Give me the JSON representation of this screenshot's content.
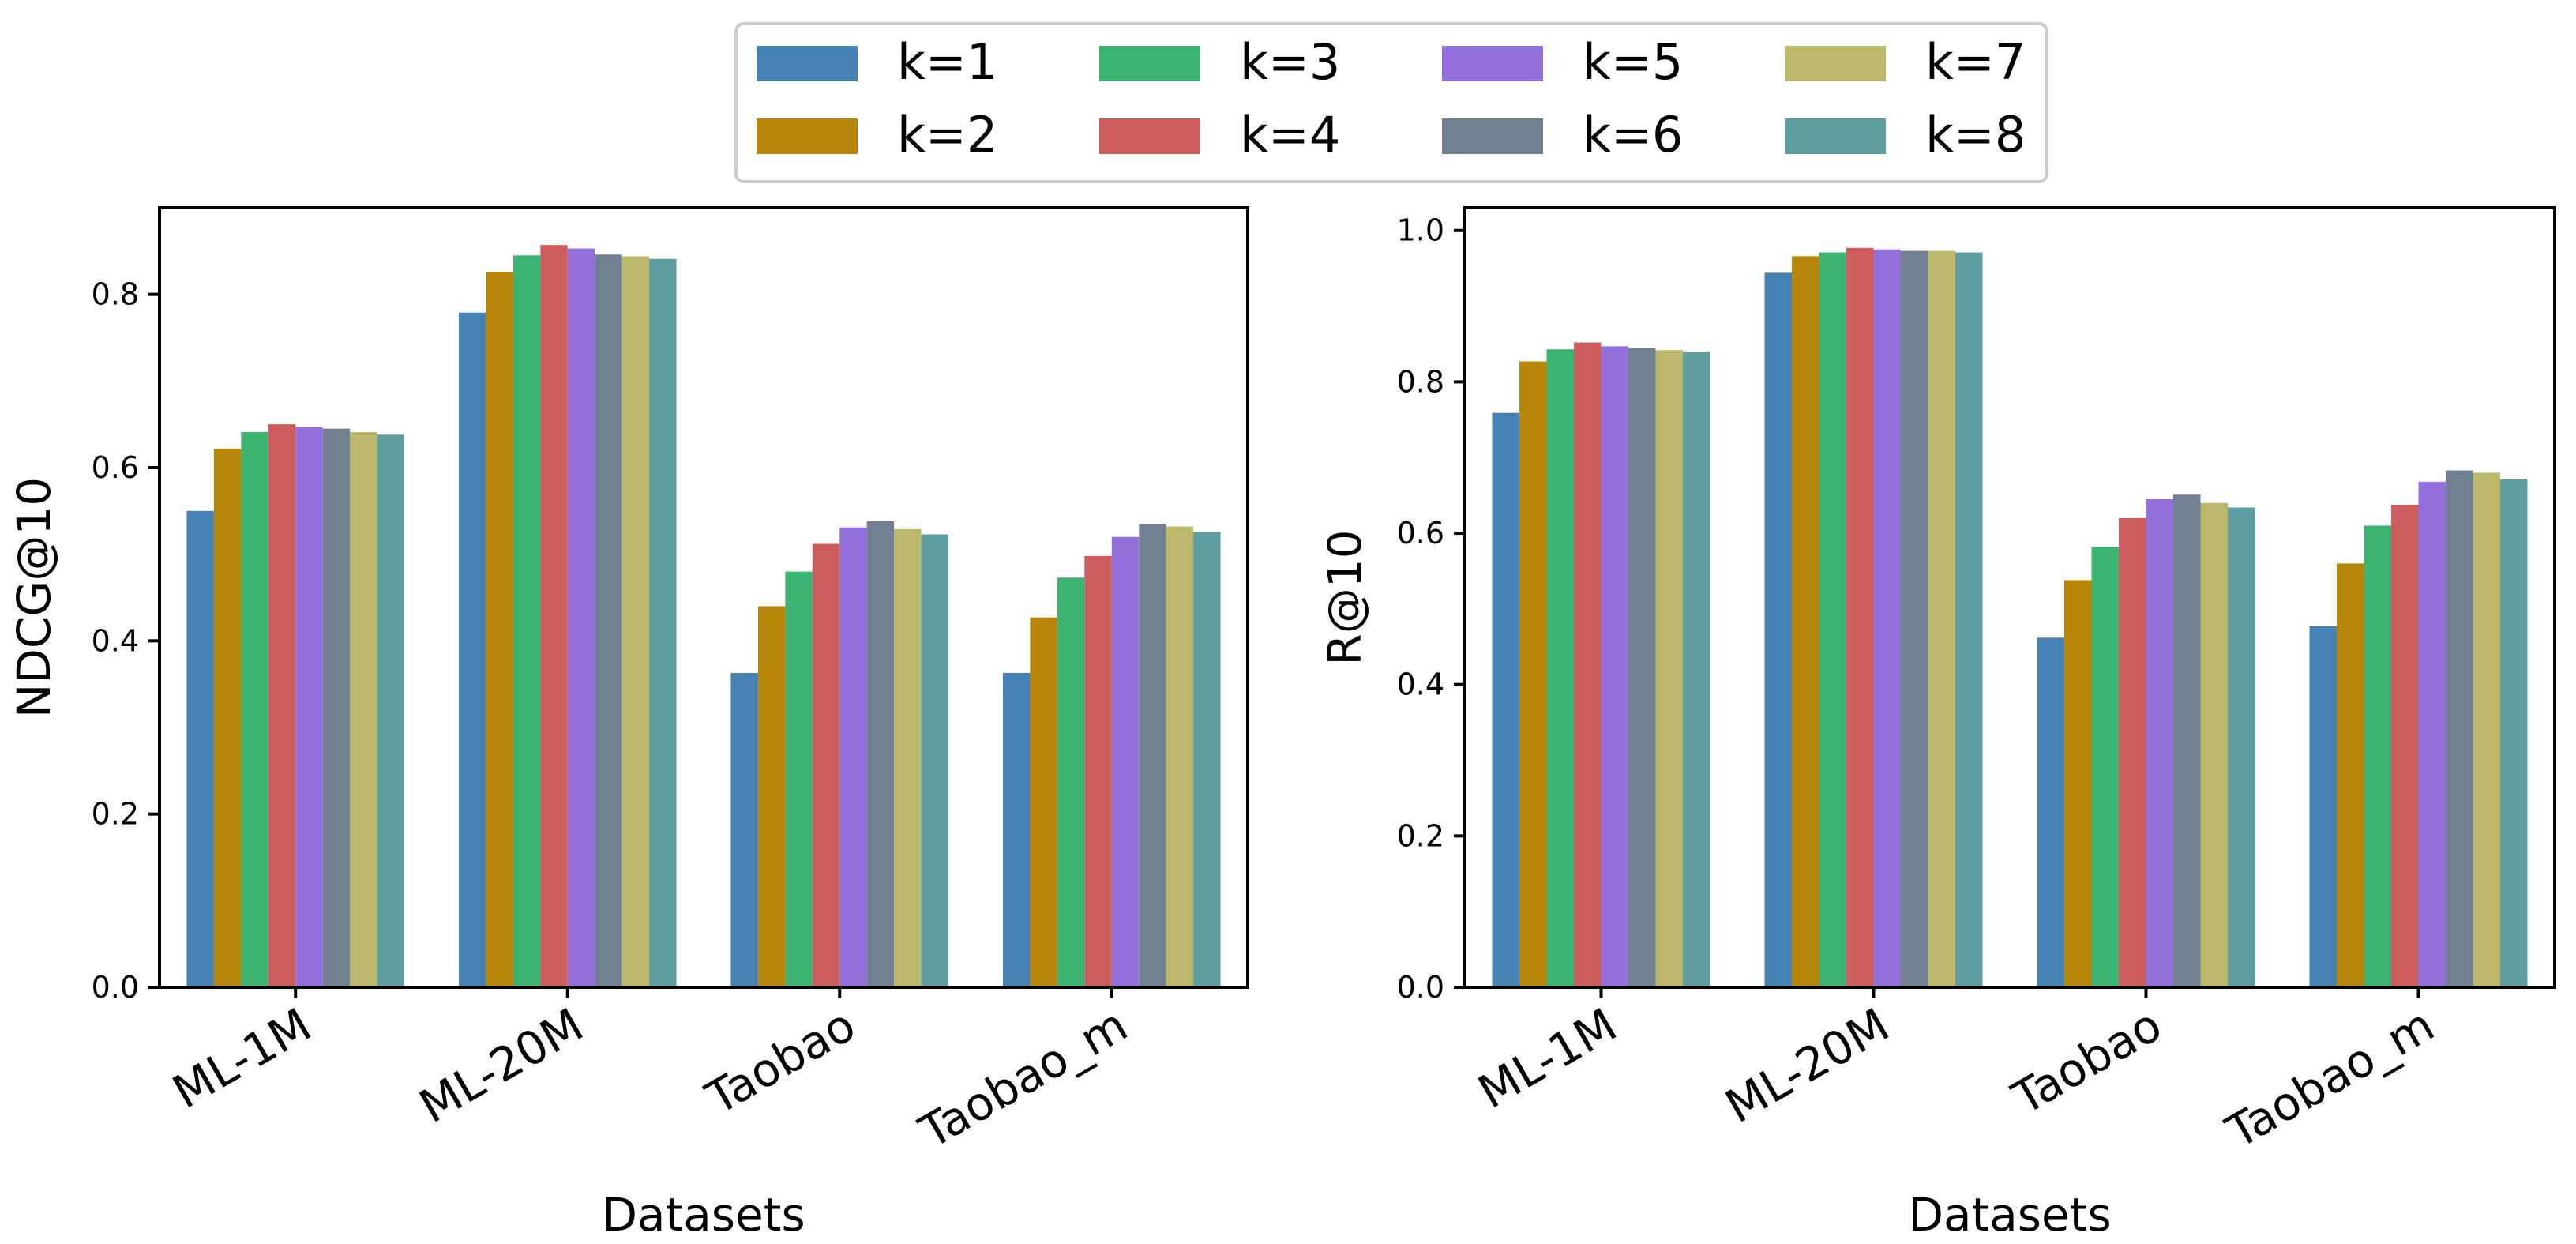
{
  "legend": {
    "items": [
      {
        "label": "k=1",
        "color": "#4682b4"
      },
      {
        "label": "k=2",
        "color": "#b8860b"
      },
      {
        "label": "k=3",
        "color": "#3cb371"
      },
      {
        "label": "k=4",
        "color": "#cd5c5c"
      },
      {
        "label": "k=5",
        "color": "#9370db"
      },
      {
        "label": "k=6",
        "color": "#708090"
      },
      {
        "label": "k=7",
        "color": "#bdb76b"
      },
      {
        "label": "k=8",
        "color": "#5f9ea0"
      }
    ]
  },
  "chart_data": [
    {
      "type": "bar",
      "title": "",
      "xlabel": "Datasets",
      "ylabel": "NDCG@10",
      "ylim": [
        0,
        0.9
      ],
      "yticks": [
        "0.0",
        "0.2",
        "0.4",
        "0.6",
        "0.8"
      ],
      "categories": [
        "ML-1M",
        "ML-20M",
        "Taobao",
        "Taobao_m"
      ],
      "series": [
        {
          "name": "k=1",
          "values": [
            0.55,
            0.779,
            0.363,
            0.363
          ]
        },
        {
          "name": "k=2",
          "values": [
            0.622,
            0.826,
            0.44,
            0.427
          ]
        },
        {
          "name": "k=3",
          "values": [
            0.641,
            0.845,
            0.48,
            0.473
          ]
        },
        {
          "name": "k=4",
          "values": [
            0.65,
            0.857,
            0.512,
            0.498
          ]
        },
        {
          "name": "k=5",
          "values": [
            0.647,
            0.853,
            0.531,
            0.52
          ]
        },
        {
          "name": "k=6",
          "values": [
            0.645,
            0.846,
            0.538,
            0.535
          ]
        },
        {
          "name": "k=7",
          "values": [
            0.641,
            0.844,
            0.529,
            0.532
          ]
        },
        {
          "name": "k=8",
          "values": [
            0.638,
            0.841,
            0.523,
            0.526
          ]
        }
      ]
    },
    {
      "type": "bar",
      "title": "",
      "xlabel": "Datasets",
      "ylabel": "R@10",
      "ylim": [
        0,
        1.03
      ],
      "yticks": [
        "0.0",
        "0.2",
        "0.4",
        "0.6",
        "0.8",
        "1.0"
      ],
      "categories": [
        "ML-1M",
        "ML-20M",
        "Taobao",
        "Taobao_m"
      ],
      "series": [
        {
          "name": "k=1",
          "values": [
            0.759,
            0.944,
            0.462,
            0.477
          ]
        },
        {
          "name": "k=2",
          "values": [
            0.827,
            0.966,
            0.538,
            0.56
          ]
        },
        {
          "name": "k=3",
          "values": [
            0.843,
            0.971,
            0.582,
            0.61
          ]
        },
        {
          "name": "k=4",
          "values": [
            0.852,
            0.977,
            0.62,
            0.637
          ]
        },
        {
          "name": "k=5",
          "values": [
            0.847,
            0.975,
            0.645,
            0.668
          ]
        },
        {
          "name": "k=6",
          "values": [
            0.845,
            0.973,
            0.651,
            0.683
          ]
        },
        {
          "name": "k=7",
          "values": [
            0.842,
            0.973,
            0.64,
            0.68
          ]
        },
        {
          "name": "k=8",
          "values": [
            0.839,
            0.971,
            0.634,
            0.671
          ]
        }
      ]
    }
  ]
}
